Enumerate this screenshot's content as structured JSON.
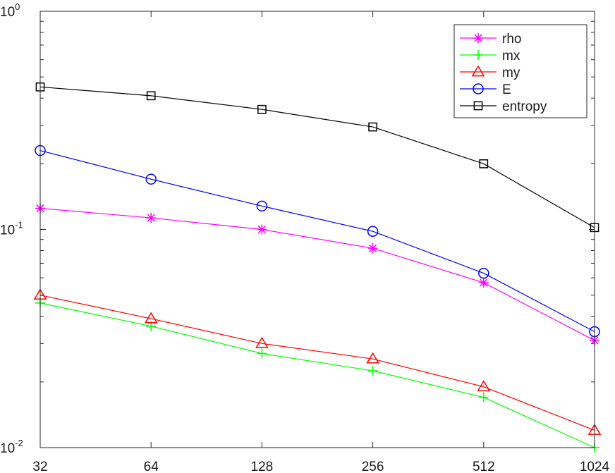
{
  "chart_data": {
    "type": "line",
    "title": "",
    "xlabel": "",
    "ylabel": "",
    "x": [
      32,
      64,
      128,
      256,
      512,
      1024
    ],
    "x_tick_labels": [
      "32",
      "64",
      "128",
      "256",
      "512",
      "1024"
    ],
    "x_scale": "log2",
    "y_scale": "log10",
    "ylim": [
      0.01,
      1
    ],
    "y_tick_labels": [
      {
        "value": 1,
        "base": "10",
        "exp": "0"
      },
      {
        "value": 0.1,
        "base": "10",
        "exp": "-1"
      },
      {
        "value": 0.01,
        "base": "10",
        "exp": "-2"
      }
    ],
    "grid": false,
    "legend_position": "top-right",
    "series": [
      {
        "name": "rho",
        "color": "#ff00ff",
        "marker": "asterisk",
        "values": [
          0.125,
          0.113,
          0.1,
          0.082,
          0.057,
          0.031
        ]
      },
      {
        "name": "mx",
        "color": "#00ff00",
        "marker": "plus",
        "values": [
          0.046,
          0.036,
          0.027,
          0.0225,
          0.017,
          0.01
        ]
      },
      {
        "name": "my",
        "color": "#ff0000",
        "marker": "triangle",
        "values": [
          0.05,
          0.039,
          0.03,
          0.0255,
          0.019,
          0.012
        ]
      },
      {
        "name": "E",
        "color": "#0000ff",
        "marker": "circle",
        "values": [
          0.23,
          0.17,
          0.128,
          0.098,
          0.063,
          0.034
        ]
      },
      {
        "name": "entropy",
        "color": "#000000",
        "marker": "square",
        "values": [
          0.45,
          0.41,
          0.355,
          0.295,
          0.2,
          0.102
        ]
      }
    ]
  }
}
